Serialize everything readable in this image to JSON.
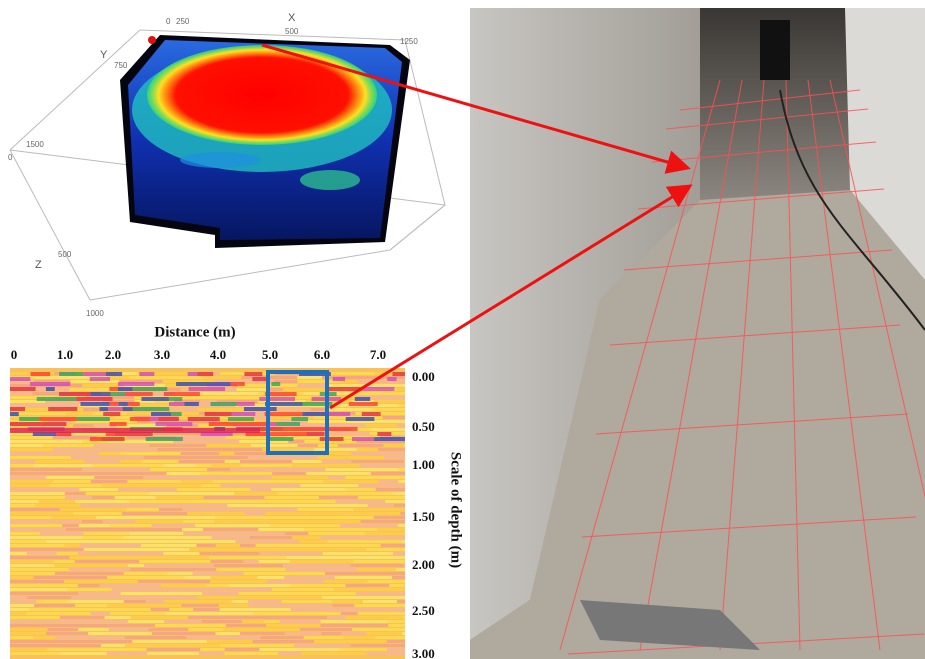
{
  "volume_3d": {
    "axis_labels": {
      "x": "X",
      "y": "Y",
      "z": "Z"
    },
    "x_tick_labels": [
      "0",
      "250",
      "500",
      "1250"
    ],
    "y_tick_labels": [
      "750",
      "1500"
    ],
    "z_tick_labels": [
      "0",
      "500",
      "1000"
    ]
  },
  "radargram": {
    "title": "Distance (m)",
    "x_tick_labels": [
      "0",
      "1.0",
      "2.0",
      "3.0",
      "4.0",
      "5.0",
      "6.0",
      "7.0"
    ],
    "depth_tick_labels": [
      "0.00",
      "0.50",
      "1.00",
      "1.50",
      "2.00",
      "2.50",
      "3.00"
    ],
    "depth_label": "Scale of depth (m)"
  }
}
